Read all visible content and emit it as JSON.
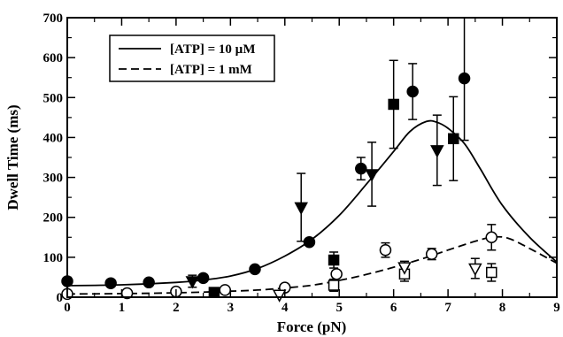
{
  "chart_data": {
    "type": "scatter",
    "title": "",
    "xlabel": "Force (pN)",
    "ylabel": "Dwell Time (ms)",
    "xlim": [
      0,
      9
    ],
    "ylim": [
      0,
      700
    ],
    "xticks": [
      "0",
      "1",
      "2",
      "3",
      "4",
      "5",
      "6",
      "7",
      "8",
      "9"
    ],
    "yticks": [
      "0",
      "100",
      "200",
      "300",
      "400",
      "500",
      "600",
      "700"
    ],
    "grid": false,
    "legend": {
      "position": "top-left",
      "entries": [
        {
          "label": "[ATP] = 10 µM",
          "line_style": "solid"
        },
        {
          "label": "[ATP] = 1 mM",
          "line_style": "dashed"
        }
      ]
    },
    "series": [
      {
        "marker": "filled-circle",
        "points": [
          {
            "x": 0.0,
            "y": 40
          },
          {
            "x": 0.8,
            "y": 35
          },
          {
            "x": 1.5,
            "y": 37
          },
          {
            "x": 2.5,
            "y": 48
          },
          {
            "x": 3.45,
            "y": 70
          },
          {
            "x": 4.45,
            "y": 138
          },
          {
            "x": 5.4,
            "y": 322,
            "err": 28
          },
          {
            "x": 6.35,
            "y": 515,
            "err": 70
          },
          {
            "x": 7.3,
            "y": 548,
            "err": 155
          }
        ]
      },
      {
        "marker": "filled-square",
        "points": [
          {
            "x": 2.7,
            "y": 12
          },
          {
            "x": 4.9,
            "y": 93,
            "err": 20
          },
          {
            "x": 6.0,
            "y": 483,
            "err": 110
          },
          {
            "x": 7.1,
            "y": 397,
            "err": 105
          }
        ]
      },
      {
        "marker": "filled-triangle",
        "points": [
          {
            "x": 2.3,
            "y": 40,
            "err": 15
          },
          {
            "x": 4.3,
            "y": 225,
            "err": 85
          },
          {
            "x": 5.6,
            "y": 308,
            "err": 80
          },
          {
            "x": 6.8,
            "y": 368,
            "err": 88
          }
        ]
      },
      {
        "marker": "open-circle",
        "points": [
          {
            "x": 0.0,
            "y": 8
          },
          {
            "x": 1.1,
            "y": 10
          },
          {
            "x": 2.0,
            "y": 14
          },
          {
            "x": 2.9,
            "y": 18
          },
          {
            "x": 4.0,
            "y": 24
          },
          {
            "x": 4.95,
            "y": 58
          },
          {
            "x": 5.85,
            "y": 118,
            "err": 18
          },
          {
            "x": 6.7,
            "y": 108,
            "err": 14
          },
          {
            "x": 7.8,
            "y": 150,
            "err": 32
          }
        ]
      },
      {
        "marker": "open-square",
        "points": [
          {
            "x": 4.9,
            "y": 30,
            "err": 15
          },
          {
            "x": 6.2,
            "y": 58,
            "err": 18
          },
          {
            "x": 7.8,
            "y": 62,
            "err": 22
          }
        ]
      },
      {
        "marker": "open-triangle",
        "points": [
          {
            "x": 3.9,
            "y": 6
          },
          {
            "x": 6.2,
            "y": 75,
            "err": 15
          },
          {
            "x": 7.5,
            "y": 72,
            "err": 25
          }
        ]
      }
    ],
    "fit_curves": [
      {
        "line_style": "solid",
        "points": [
          [
            0,
            29
          ],
          [
            1,
            31
          ],
          [
            2,
            37
          ],
          [
            2.5,
            43
          ],
          [
            3,
            53
          ],
          [
            3.5,
            72
          ],
          [
            4,
            103
          ],
          [
            4.5,
            145
          ],
          [
            5,
            205
          ],
          [
            5.5,
            283
          ],
          [
            6,
            365
          ],
          [
            6.3,
            415
          ],
          [
            6.6,
            440
          ],
          [
            6.8,
            438
          ],
          [
            7,
            423
          ],
          [
            7.3,
            385
          ],
          [
            7.6,
            320
          ],
          [
            8,
            230
          ],
          [
            8.5,
            150
          ],
          [
            9,
            88
          ]
        ]
      },
      {
        "line_style": "dashed",
        "points": [
          [
            0,
            8
          ],
          [
            1,
            9
          ],
          [
            2,
            11
          ],
          [
            3,
            15
          ],
          [
            3.5,
            18
          ],
          [
            4,
            23
          ],
          [
            4.5,
            30
          ],
          [
            5,
            42
          ],
          [
            5.5,
            57
          ],
          [
            6,
            75
          ],
          [
            6.5,
            95
          ],
          [
            7,
            118
          ],
          [
            7.5,
            140
          ],
          [
            7.8,
            150
          ],
          [
            8.1,
            148
          ],
          [
            8.5,
            122
          ],
          [
            9,
            85
          ]
        ]
      }
    ]
  }
}
